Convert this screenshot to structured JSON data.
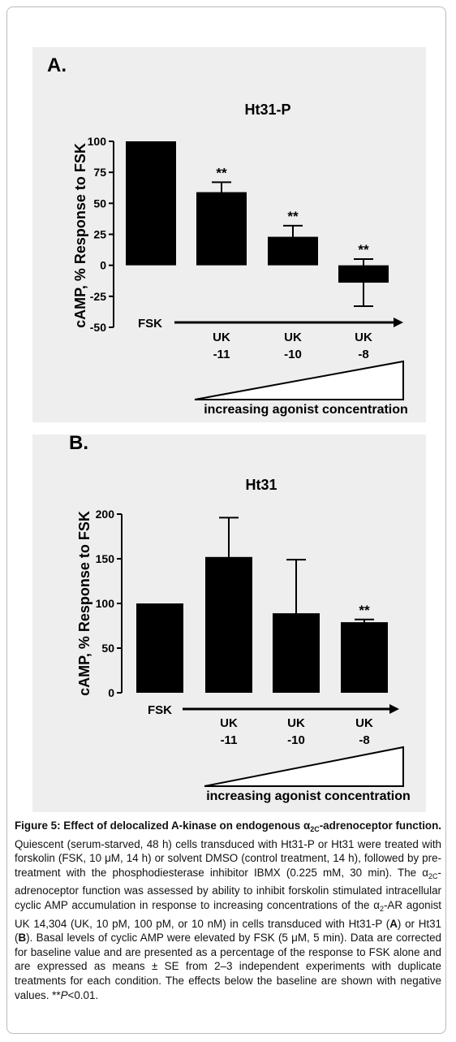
{
  "chart_data": [
    {
      "type": "bar",
      "panel_label": "A.",
      "title": "Ht31-P",
      "ylabel": "cAMP, % Response to FSK",
      "categories": [
        "FSK",
        "UK\n-11",
        "UK\n-10",
        "UK\n-8"
      ],
      "values": [
        100,
        59,
        23,
        -14
      ],
      "errors": [
        null,
        8,
        9,
        19
      ],
      "significance": [
        null,
        "**",
        "**",
        "**"
      ],
      "color": "#000000",
      "ylim": [
        -50,
        100
      ],
      "yticks": [
        -50,
        -25,
        0,
        25,
        50,
        75,
        100
      ],
      "grid": false,
      "x_annotation": "increasing agonist concentration"
    },
    {
      "type": "bar",
      "panel_label": "B.",
      "title": "Ht31",
      "ylabel": "cAMP, % Response to FSK",
      "categories": [
        "FSK",
        "UK\n-11",
        "UK\n-10",
        "UK\n-8"
      ],
      "values": [
        100,
        152,
        89,
        79
      ],
      "errors": [
        null,
        44,
        60,
        3
      ],
      "significance": [
        null,
        null,
        null,
        "**"
      ],
      "color": "#000000",
      "ylim": [
        0,
        200
      ],
      "yticks": [
        0,
        50,
        100,
        150,
        200
      ],
      "grid": false,
      "x_annotation": "increasing agonist concentration"
    }
  ],
  "caption": {
    "runs": [
      {
        "text": "Figure 5: Effect of delocalized A-kinase on endogenous α",
        "style": "b"
      },
      {
        "text": "2C",
        "style": "bsub"
      },
      {
        "text": "-adrenoceptor function.",
        "style": "b"
      },
      {
        "text": " Quiescent (serum-starved, 48 h) cells transduced with Ht31-P or Ht31 were treated with forskolin (FSK, 10 μM, 14 h) or solvent DMSO (control treatment, 14 h), followed by pre-treatment with the phosphodiesterase inhibitor IBMX (0.225 mM, 30 min). The α",
        "style": "n"
      },
      {
        "text": "2C",
        "style": "sub"
      },
      {
        "text": "-adrenoceptor function was assessed by ability to inhibit forskolin stimulated intracellular cyclic AMP accumulation in response to increasing concentrations of the α",
        "style": "n"
      },
      {
        "text": "2",
        "style": "sub"
      },
      {
        "text": "-AR agonist UK 14,304 (UK, 10 pM, 100 pM, or 10 nM) in cells transduced with Ht31-P (",
        "style": "n"
      },
      {
        "text": "A",
        "style": "b"
      },
      {
        "text": ") or Ht31 (",
        "style": "n"
      },
      {
        "text": "B",
        "style": "b"
      },
      {
        "text": "). Basal levels of cyclic AMP were elevated by FSK (5 μM, 5 min). Data are corrected for baseline value and are presented as a percentage of the response to FSK alone and are expressed as means ± SE from 2–3 independent experiments with duplicate treatments for each condition. The effects below the baseline are shown with negative values. **",
        "style": "n"
      },
      {
        "text": "P",
        "style": "i"
      },
      {
        "text": "<0.01.",
        "style": "n"
      }
    ]
  }
}
